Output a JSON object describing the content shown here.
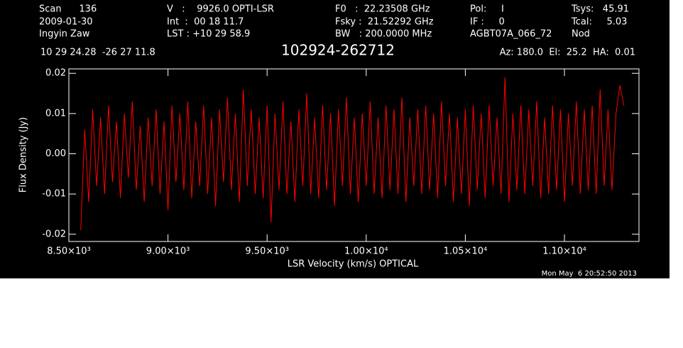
{
  "header": {
    "scan": "Scan      136",
    "date": "2009-01-30",
    "observer": "Ingyin Zaw",
    "velocity": "V   :    9926.0 OPTI-LSR",
    "int": "Int  :  00 18 11.7",
    "lst": "LST : +10 29 58.9",
    "f0": "F0   :  22.23508 GHz",
    "fsky": "Fsky :  21.52292 GHz",
    "bw": "BW   : 200.0000 MHz",
    "pol": "Pol:     I",
    "if": "IF :     0",
    "project": "AGBT07A_066_72",
    "tsys": "Tsys:   45.91",
    "tcal": "Tcal:     5.03",
    "proc": "Nod",
    "coords": "10 29 24.28  -26 27 11.8",
    "source": "102924-262712",
    "azel": "Az: 180.0  El:  25.2  HA:  0.01",
    "timestamp": "Mon May  6 20:52:50 2013"
  },
  "chart_data": {
    "type": "line",
    "xlabel": "LSR Velocity (km/s) OPTICAL",
    "ylabel": "Flux Density (Jy)",
    "xlim": [
      8500,
      11376
    ],
    "ylim": [
      -0.0218,
      0.0211
    ],
    "xticks": [
      {
        "value": 8500,
        "label": "8.50×10³"
      },
      {
        "value": 9000,
        "label": "9.00×10³"
      },
      {
        "value": 9500,
        "label": "9.50×10³"
      },
      {
        "value": 10000,
        "label": "1.00×10⁴"
      },
      {
        "value": 10500,
        "label": "1.05×10⁴"
      },
      {
        "value": 11000,
        "label": "1.10×10⁴"
      }
    ],
    "yticks": [
      -0.02,
      -0.01,
      {
        "value": 0,
        "label": "0.00"
      },
      0.01,
      0.02
    ],
    "color": "#ff0000",
    "x": [
      8560,
      8580,
      8600,
      8620,
      8640,
      8660,
      8680,
      8700,
      8720,
      8740,
      8760,
      8780,
      8800,
      8820,
      8840,
      8860,
      8880,
      8900,
      8920,
      8940,
      8960,
      8980,
      9000,
      9020,
      9040,
      9060,
      9080,
      9100,
      9120,
      9140,
      9160,
      9180,
      9200,
      9220,
      9240,
      9260,
      9280,
      9300,
      9320,
      9340,
      9360,
      9380,
      9400,
      9420,
      9440,
      9460,
      9480,
      9500,
      9520,
      9540,
      9560,
      9580,
      9600,
      9620,
      9640,
      9660,
      9680,
      9700,
      9720,
      9740,
      9760,
      9780,
      9800,
      9820,
      9840,
      9860,
      9880,
      9900,
      9920,
      9940,
      9960,
      9980,
      10000,
      10020,
      10040,
      10060,
      10080,
      10100,
      10120,
      10140,
      10160,
      10180,
      10200,
      10220,
      10240,
      10260,
      10280,
      10300,
      10320,
      10340,
      10360,
      10380,
      10400,
      10420,
      10440,
      10460,
      10480,
      10500,
      10520,
      10540,
      10560,
      10580,
      10600,
      10620,
      10640,
      10660,
      10680,
      10700,
      10720,
      10740,
      10760,
      10780,
      10800,
      10820,
      10840,
      10860,
      10880,
      10900,
      10920,
      10940,
      10960,
      10980,
      11000,
      11020,
      11040,
      11060,
      11080,
      11100,
      11120,
      11140,
      11160,
      11180,
      11200,
      11220,
      11240,
      11260,
      11280,
      11300
    ],
    "values": [
      -0.019,
      0.006,
      -0.012,
      0.011,
      -0.008,
      0.009,
      -0.01,
      0.012,
      -0.007,
      0.008,
      -0.011,
      0.01,
      -0.006,
      0.013,
      -0.009,
      0.007,
      -0.012,
      0.009,
      -0.008,
      0.011,
      -0.01,
      0.008,
      -0.014,
      0.012,
      -0.007,
      0.01,
      -0.009,
      0.013,
      -0.011,
      0.008,
      -0.008,
      0.012,
      -0.01,
      0.009,
      -0.013,
      0.011,
      -0.007,
      0.014,
      -0.009,
      0.01,
      -0.012,
      0.016,
      -0.008,
      0.011,
      -0.01,
      0.009,
      -0.011,
      0.012,
      -0.017,
      0.01,
      -0.009,
      0.013,
      -0.01,
      0.008,
      -0.012,
      0.011,
      -0.008,
      0.015,
      -0.01,
      0.009,
      -0.011,
      0.012,
      -0.009,
      0.01,
      -0.013,
      0.011,
      -0.008,
      0.014,
      -0.01,
      0.009,
      -0.012,
      0.01,
      -0.008,
      0.013,
      -0.01,
      0.009,
      -0.011,
      0.012,
      -0.009,
      0.011,
      -0.01,
      0.014,
      -0.012,
      0.009,
      -0.008,
      0.011,
      -0.01,
      0.012,
      -0.009,
      0.01,
      -0.011,
      0.013,
      -0.008,
      0.01,
      -0.012,
      0.009,
      -0.01,
      0.011,
      -0.013,
      0.012,
      -0.009,
      0.01,
      -0.011,
      0.012,
      -0.008,
      0.009,
      -0.01,
      0.019,
      -0.012,
      0.01,
      -0.009,
      0.012,
      -0.01,
      0.011,
      -0.008,
      0.013,
      -0.011,
      0.009,
      -0.01,
      0.012,
      -0.009,
      0.011,
      -0.012,
      0.01,
      -0.008,
      0.013,
      -0.01,
      0.011,
      -0.009,
      0.012,
      -0.01,
      0.016,
      -0.008,
      0.011,
      -0.009,
      0.01,
      0.017,
      0.012
    ]
  }
}
